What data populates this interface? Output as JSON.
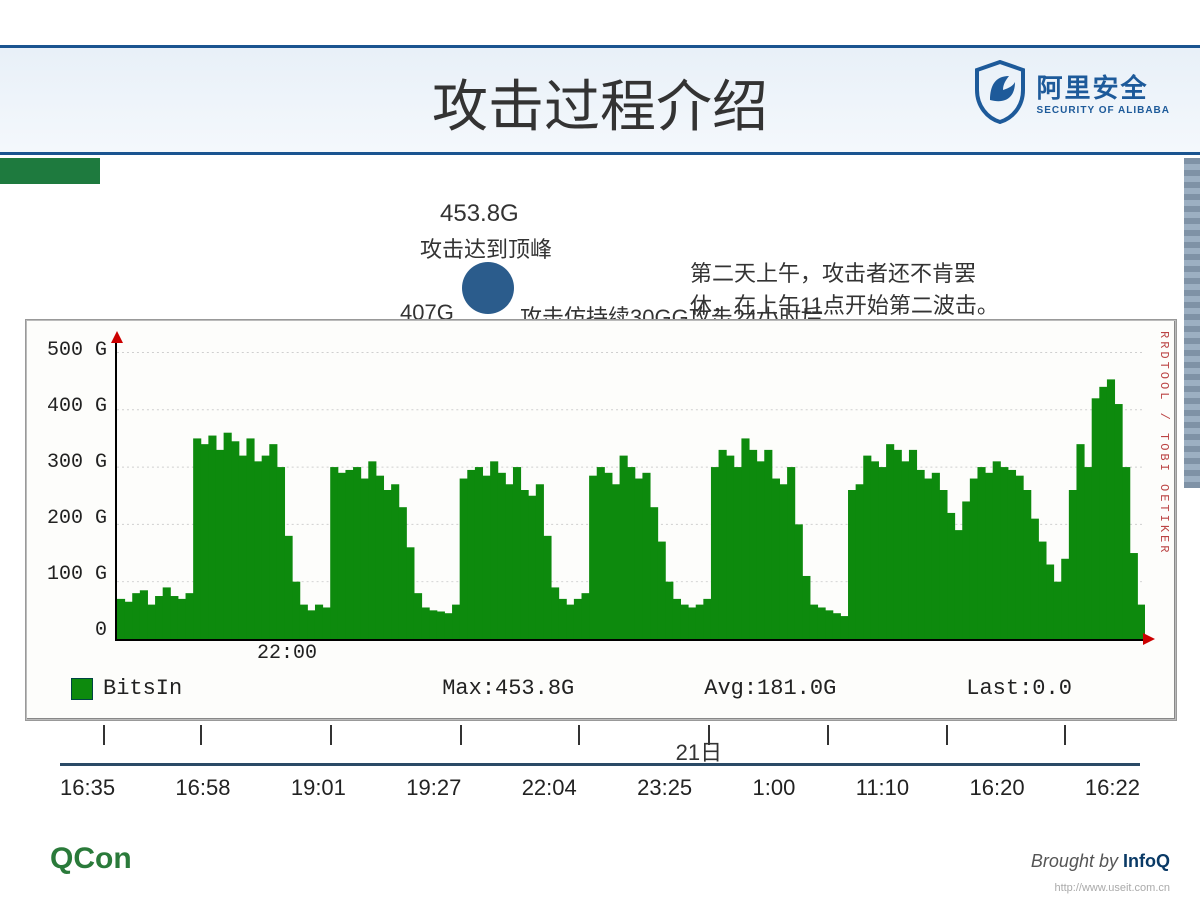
{
  "title": "攻击过程介绍",
  "logo": {
    "cn": "阿里安全",
    "en": "SECURITY OF ALIBABA",
    "shield_color": "#1d5a9a"
  },
  "annotations": {
    "peak_value": "453.8G",
    "peak_label": "攻击达到顶峰",
    "val_407": "407G",
    "overlap_text": "攻击仿持续30GG攻击24小时后，",
    "right_line1": "第二天上午，攻击者还不肯罢",
    "right_line2": "休，在上午11点开始第二波击。"
  },
  "chart": {
    "type": "area-bars",
    "background_color": "#fdfdfb",
    "bar_color": "#0d8a0d",
    "grid_color": "#cfcfcf",
    "axis_color": "#000000",
    "arrow_color": "#cc0000",
    "ylim": [
      0,
      520
    ],
    "yticks": [
      "0",
      "100 G",
      "200 G",
      "300 G",
      "400 G",
      "500 G"
    ],
    "x_inner_label": "22:00",
    "rrd_text": "RRDTOOL / TOBI OETIKER",
    "legend": {
      "series": "BitsIn",
      "max": "Max:453.8G",
      "avg": "Avg:181.0G",
      "last": "Last:0.0"
    },
    "values": [
      70,
      65,
      80,
      85,
      60,
      75,
      90,
      75,
      70,
      80,
      350,
      340,
      355,
      330,
      360,
      345,
      320,
      350,
      310,
      320,
      340,
      300,
      180,
      100,
      60,
      50,
      60,
      55,
      300,
      290,
      295,
      300,
      280,
      310,
      285,
      260,
      270,
      230,
      160,
      80,
      55,
      50,
      48,
      45,
      60,
      280,
      295,
      300,
      285,
      310,
      290,
      270,
      300,
      260,
      250,
      270,
      180,
      90,
      70,
      60,
      70,
      80,
      285,
      300,
      290,
      270,
      320,
      300,
      280,
      290,
      230,
      170,
      100,
      70,
      60,
      55,
      60,
      70,
      300,
      330,
      320,
      300,
      350,
      330,
      310,
      330,
      280,
      270,
      300,
      200,
      110,
      60,
      55,
      50,
      45,
      40,
      260,
      270,
      320,
      310,
      300,
      340,
      330,
      310,
      330,
      295,
      280,
      290,
      260,
      220,
      190,
      240,
      280,
      300,
      290,
      310,
      300,
      295,
      285,
      260,
      210,
      170,
      130,
      100,
      140,
      260,
      340,
      300,
      420,
      440,
      453,
      410,
      300,
      150,
      60
    ]
  },
  "timeline": {
    "mid_label": "21日",
    "ticks_pct": [
      4,
      13,
      25,
      37,
      48,
      60,
      71,
      82,
      93
    ],
    "labels": [
      "16:35",
      "16:58",
      "19:01",
      "19:27",
      "22:04",
      "23:25",
      "1:00",
      "11:10",
      "16:20",
      "16:22"
    ]
  },
  "footer": {
    "qcon": "QCon",
    "brought": "Brought by",
    "infoq": "InfoQ",
    "watermark": "http://www.useit.com.cn"
  },
  "colors": {
    "header_border": "#1a5490",
    "green_stripe": "#1e7a3e",
    "dot": "#2b5c8c",
    "timeline_line": "#2a4a66"
  }
}
